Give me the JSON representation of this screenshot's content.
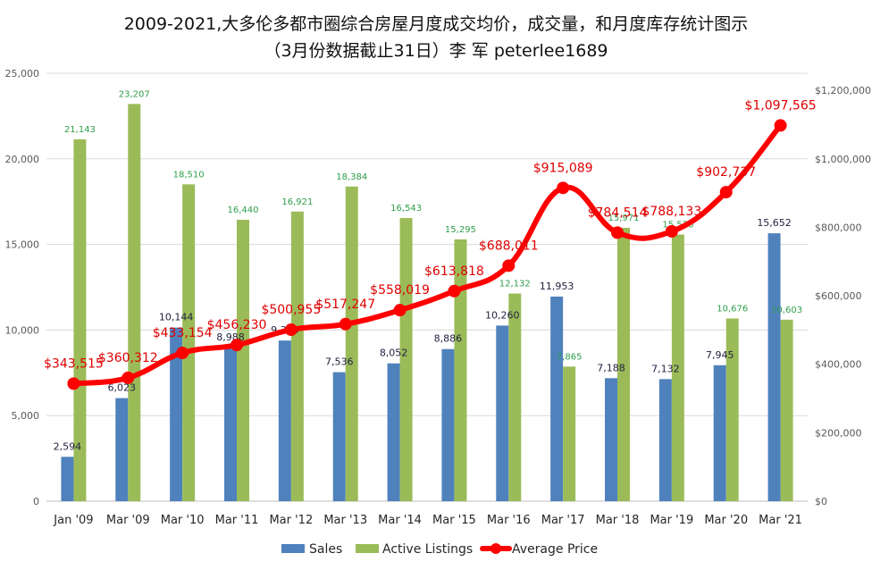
{
  "chart_data": {
    "type": "bar",
    "title": "2009-2021,大多伦多都市圈综合房屋月度成交均价，成交量，和月度库存统计图示",
    "subtitle": "（3月份数据截止31日）李 军 peterlee1689",
    "categories": [
      "Jan '09",
      "Mar '09",
      "Mar '10",
      "Mar '11",
      "Mar '12",
      "Mar '13",
      "Mar '14",
      "Mar '15",
      "Mar '16",
      "Mar '17",
      "Mar '18",
      "Mar '19",
      "Mar '20",
      "Mar '21"
    ],
    "series": [
      {
        "name": "Sales",
        "type": "bar",
        "axis": "left",
        "color": "#4f81bd",
        "label_color": "#1f1f3f",
        "values": [
          2594,
          6023,
          10144,
          8988,
          9385,
          7536,
          8052,
          8886,
          10260,
          11953,
          7188,
          7132,
          7945,
          15652
        ],
        "labels": [
          "2,594",
          "6,023",
          "10,144",
          "8,988",
          "9,385",
          "7,536",
          "8,052",
          "8,886",
          "10,260",
          "11,953",
          "7,188",
          "7,132",
          "7,945",
          "15,652"
        ]
      },
      {
        "name": "Active Listings",
        "type": "bar",
        "axis": "left",
        "color": "#9bbb59",
        "label_color": "#2e9e4a",
        "values": [
          21143,
          23207,
          18510,
          16440,
          16921,
          18384,
          16543,
          15295,
          12132,
          7865,
          15971,
          15576,
          10676,
          10603
        ],
        "labels": [
          "21,143",
          "23,207",
          "18,510",
          "16,440",
          "16,921",
          "18,384",
          "16,543",
          "15,295",
          "12,132",
          "7,865",
          "15,971",
          "15,576",
          "10,676",
          "10,603"
        ]
      },
      {
        "name": "Average Price",
        "type": "line",
        "axis": "right",
        "color": "#ff0000",
        "label_color": "#e00000",
        "values": [
          343515,
          360312,
          433154,
          456230,
          500955,
          517247,
          558019,
          613818,
          688011,
          915089,
          784514,
          788133,
          902737,
          1097565
        ],
        "labels": [
          "$343,515",
          "$360,312",
          "$433,154",
          "$456,230",
          "$500,955",
          "$517,247",
          "$558,019",
          "$613,818",
          "$688,011",
          "$915,089",
          "$784,514",
          "$788,133",
          "$902,737",
          "$1,097,565"
        ]
      }
    ],
    "y_left": {
      "min": 0,
      "max": 25000,
      "ticks": [
        0,
        5000,
        10000,
        15000,
        20000,
        25000
      ],
      "tick_labels": [
        "0",
        "5,000",
        "10,000",
        "15,000",
        "20,000",
        "25,000"
      ]
    },
    "y_right": {
      "min": 0,
      "max": 1250000,
      "ticks": [
        0,
        200000,
        400000,
        600000,
        800000,
        1000000,
        1200000
      ],
      "tick_labels": [
        "$0",
        "$200,000",
        "$400,000",
        "$600,000",
        "$800,000",
        "$1,000,000",
        "$1,200,000"
      ]
    },
    "grid": true,
    "legend_position": "bottom"
  }
}
